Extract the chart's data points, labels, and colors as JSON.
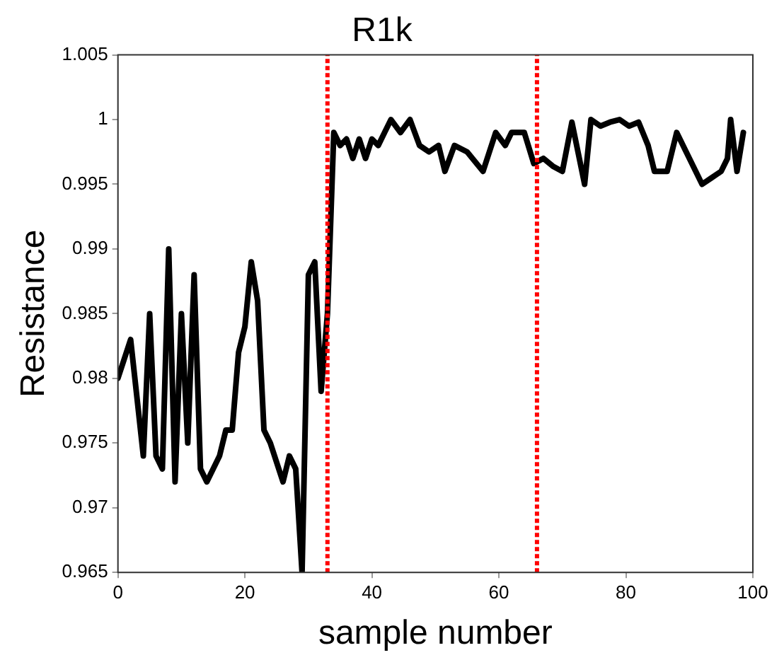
{
  "chart_data": {
    "type": "line",
    "title": "R1k",
    "xlabel": "sample number",
    "ylabel": "Resistance",
    "xlim": [
      0,
      100
    ],
    "xticks": [
      0,
      20,
      40,
      60,
      80,
      100
    ],
    "ylim": [
      0.965,
      1.005
    ],
    "yticks": [
      0.965,
      0.97,
      0.975,
      0.98,
      0.985,
      0.99,
      0.995,
      1,
      1.005
    ],
    "grid": false,
    "legend": false,
    "marker": "none",
    "line_style": "solid",
    "series": [
      {
        "color": "#000000",
        "x": [
          0,
          2,
          4,
          5,
          6,
          7,
          8,
          9,
          10,
          11,
          12,
          13,
          14,
          16,
          17,
          18,
          19,
          20,
          21,
          22,
          23,
          24,
          26,
          27,
          28,
          29,
          30,
          31,
          32,
          33,
          34,
          35,
          36,
          37,
          38,
          39,
          40,
          41,
          42,
          43,
          44.5,
          46,
          47.5,
          49,
          50.5,
          51.5,
          53,
          55,
          57.5,
          59.5,
          61,
          62,
          64,
          65.5,
          67,
          68.5,
          70,
          71.5,
          73.5,
          74.5,
          76,
          77.5,
          79,
          80.5,
          82,
          83.5,
          84.5,
          86.5,
          88,
          89.5,
          92,
          93.5,
          95,
          96,
          96.5,
          97.5,
          98.5
        ],
        "values": [
          0.98,
          0.983,
          0.974,
          0.985,
          0.974,
          0.973,
          0.99,
          0.972,
          0.985,
          0.975,
          0.988,
          0.973,
          0.972,
          0.974,
          0.976,
          0.976,
          0.982,
          0.984,
          0.989,
          0.986,
          0.976,
          0.975,
          0.972,
          0.974,
          0.973,
          0.965,
          0.988,
          0.989,
          0.979,
          0.985,
          0.999,
          0.998,
          0.9985,
          0.997,
          0.9985,
          0.997,
          0.9985,
          0.998,
          0.999,
          1.0,
          0.999,
          1.0,
          0.998,
          0.9975,
          0.998,
          0.996,
          0.998,
          0.9975,
          0.996,
          0.999,
          0.998,
          0.999,
          0.999,
          0.9966,
          0.997,
          0.9964,
          0.996,
          0.9998,
          0.995,
          1.0,
          0.9995,
          0.9998,
          1.0,
          0.9995,
          0.9998,
          0.998,
          0.996,
          0.996,
          0.999,
          0.9975,
          0.995,
          0.9955,
          0.996,
          0.997,
          1.0,
          0.996,
          0.999
        ]
      }
    ],
    "ref_lines": [
      {
        "axis": "x",
        "value": 33,
        "color": "#ff0000",
        "line_style": "dotted"
      },
      {
        "axis": "x",
        "value": 66,
        "color": "#ff0000",
        "line_style": "dotted"
      }
    ]
  }
}
